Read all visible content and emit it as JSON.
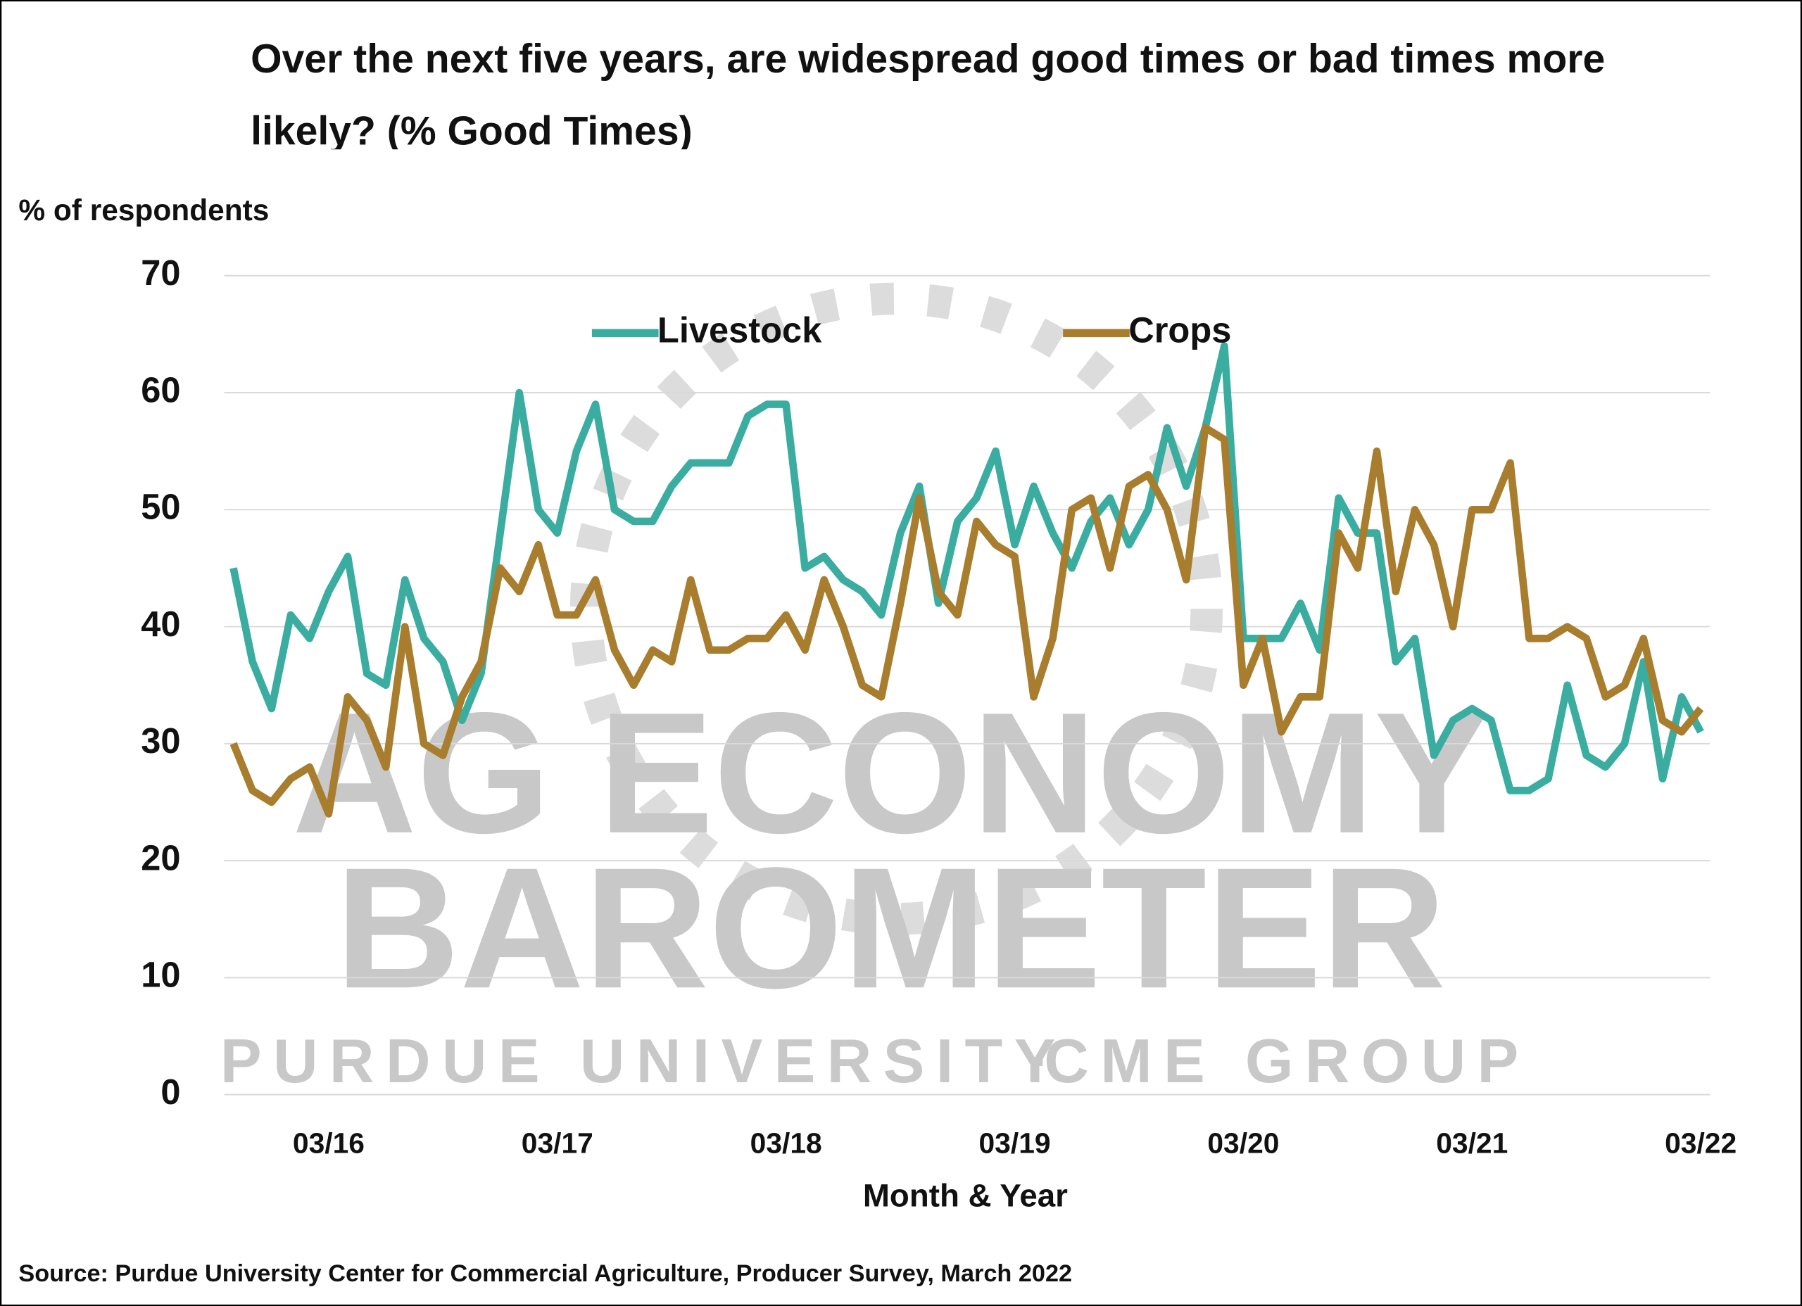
{
  "chart_data": {
    "type": "line",
    "title": "Over the next five years, are widespread good times or bad times more likely? (% Good Times)",
    "y_label": "% of respondents",
    "x_label": "Month & Year",
    "source": "Source: Purdue University Center for Commercial Agriculture, Producer Survey, March 2022",
    "watermark": [
      "AG ECONOMY",
      "BAROMETER",
      "PURDUE UNIVERSITY",
      "·",
      "CME GROUP"
    ],
    "categories": [
      null,
      null,
      null,
      null,
      null,
      "03/16",
      null,
      null,
      null,
      null,
      null,
      null,
      null,
      null,
      null,
      null,
      null,
      "03/17",
      null,
      null,
      null,
      null,
      null,
      null,
      null,
      null,
      null,
      null,
      null,
      "03/18",
      null,
      null,
      null,
      null,
      null,
      null,
      null,
      null,
      null,
      null,
      null,
      "03/19",
      null,
      null,
      null,
      null,
      null,
      null,
      null,
      null,
      null,
      null,
      null,
      "03/20",
      null,
      null,
      null,
      null,
      null,
      null,
      null,
      null,
      null,
      null,
      null,
      "03/21",
      null,
      null,
      null,
      null,
      null,
      null,
      null,
      null,
      null,
      null,
      null,
      "03/22"
    ],
    "series": [
      {
        "name": "Livestock",
        "color": "#3aada0",
        "values": [
          45,
          37,
          33,
          41,
          39,
          43,
          46,
          36,
          35,
          44,
          39,
          37,
          32,
          36,
          48,
          60,
          50,
          48,
          55,
          59,
          50,
          49,
          49,
          52,
          54,
          54,
          54,
          58,
          59,
          59,
          45,
          46,
          44,
          43,
          41,
          48,
          52,
          42,
          49,
          51,
          55,
          47,
          52,
          48,
          45,
          49,
          51,
          47,
          50,
          57,
          52,
          57,
          64,
          39,
          39,
          39,
          42,
          38,
          51,
          48,
          48,
          37,
          39,
          29,
          32,
          33,
          32,
          26,
          26,
          27,
          35,
          29,
          28,
          30,
          37,
          27,
          34,
          31
        ]
      },
      {
        "name": "Crops",
        "color": "#a87d2e",
        "values": [
          30,
          26,
          25,
          27,
          28,
          24,
          34,
          32,
          28,
          40,
          30,
          29,
          34,
          37,
          45,
          43,
          47,
          41,
          41,
          44,
          38,
          35,
          38,
          37,
          44,
          38,
          38,
          39,
          39,
          41,
          38,
          44,
          40,
          35,
          34,
          42,
          51,
          43,
          41,
          49,
          47,
          46,
          34,
          39,
          50,
          51,
          45,
          52,
          53,
          50,
          44,
          57,
          56,
          35,
          39,
          31,
          34,
          34,
          48,
          45,
          55,
          43,
          50,
          47,
          40,
          50,
          50,
          54,
          39,
          39,
          40,
          39,
          34,
          35,
          39,
          32,
          31,
          33
        ]
      }
    ],
    "ylim": [
      0,
      70
    ],
    "yticks": [
      0,
      10,
      20,
      30,
      40,
      50,
      60,
      70
    ],
    "grid": true
  }
}
